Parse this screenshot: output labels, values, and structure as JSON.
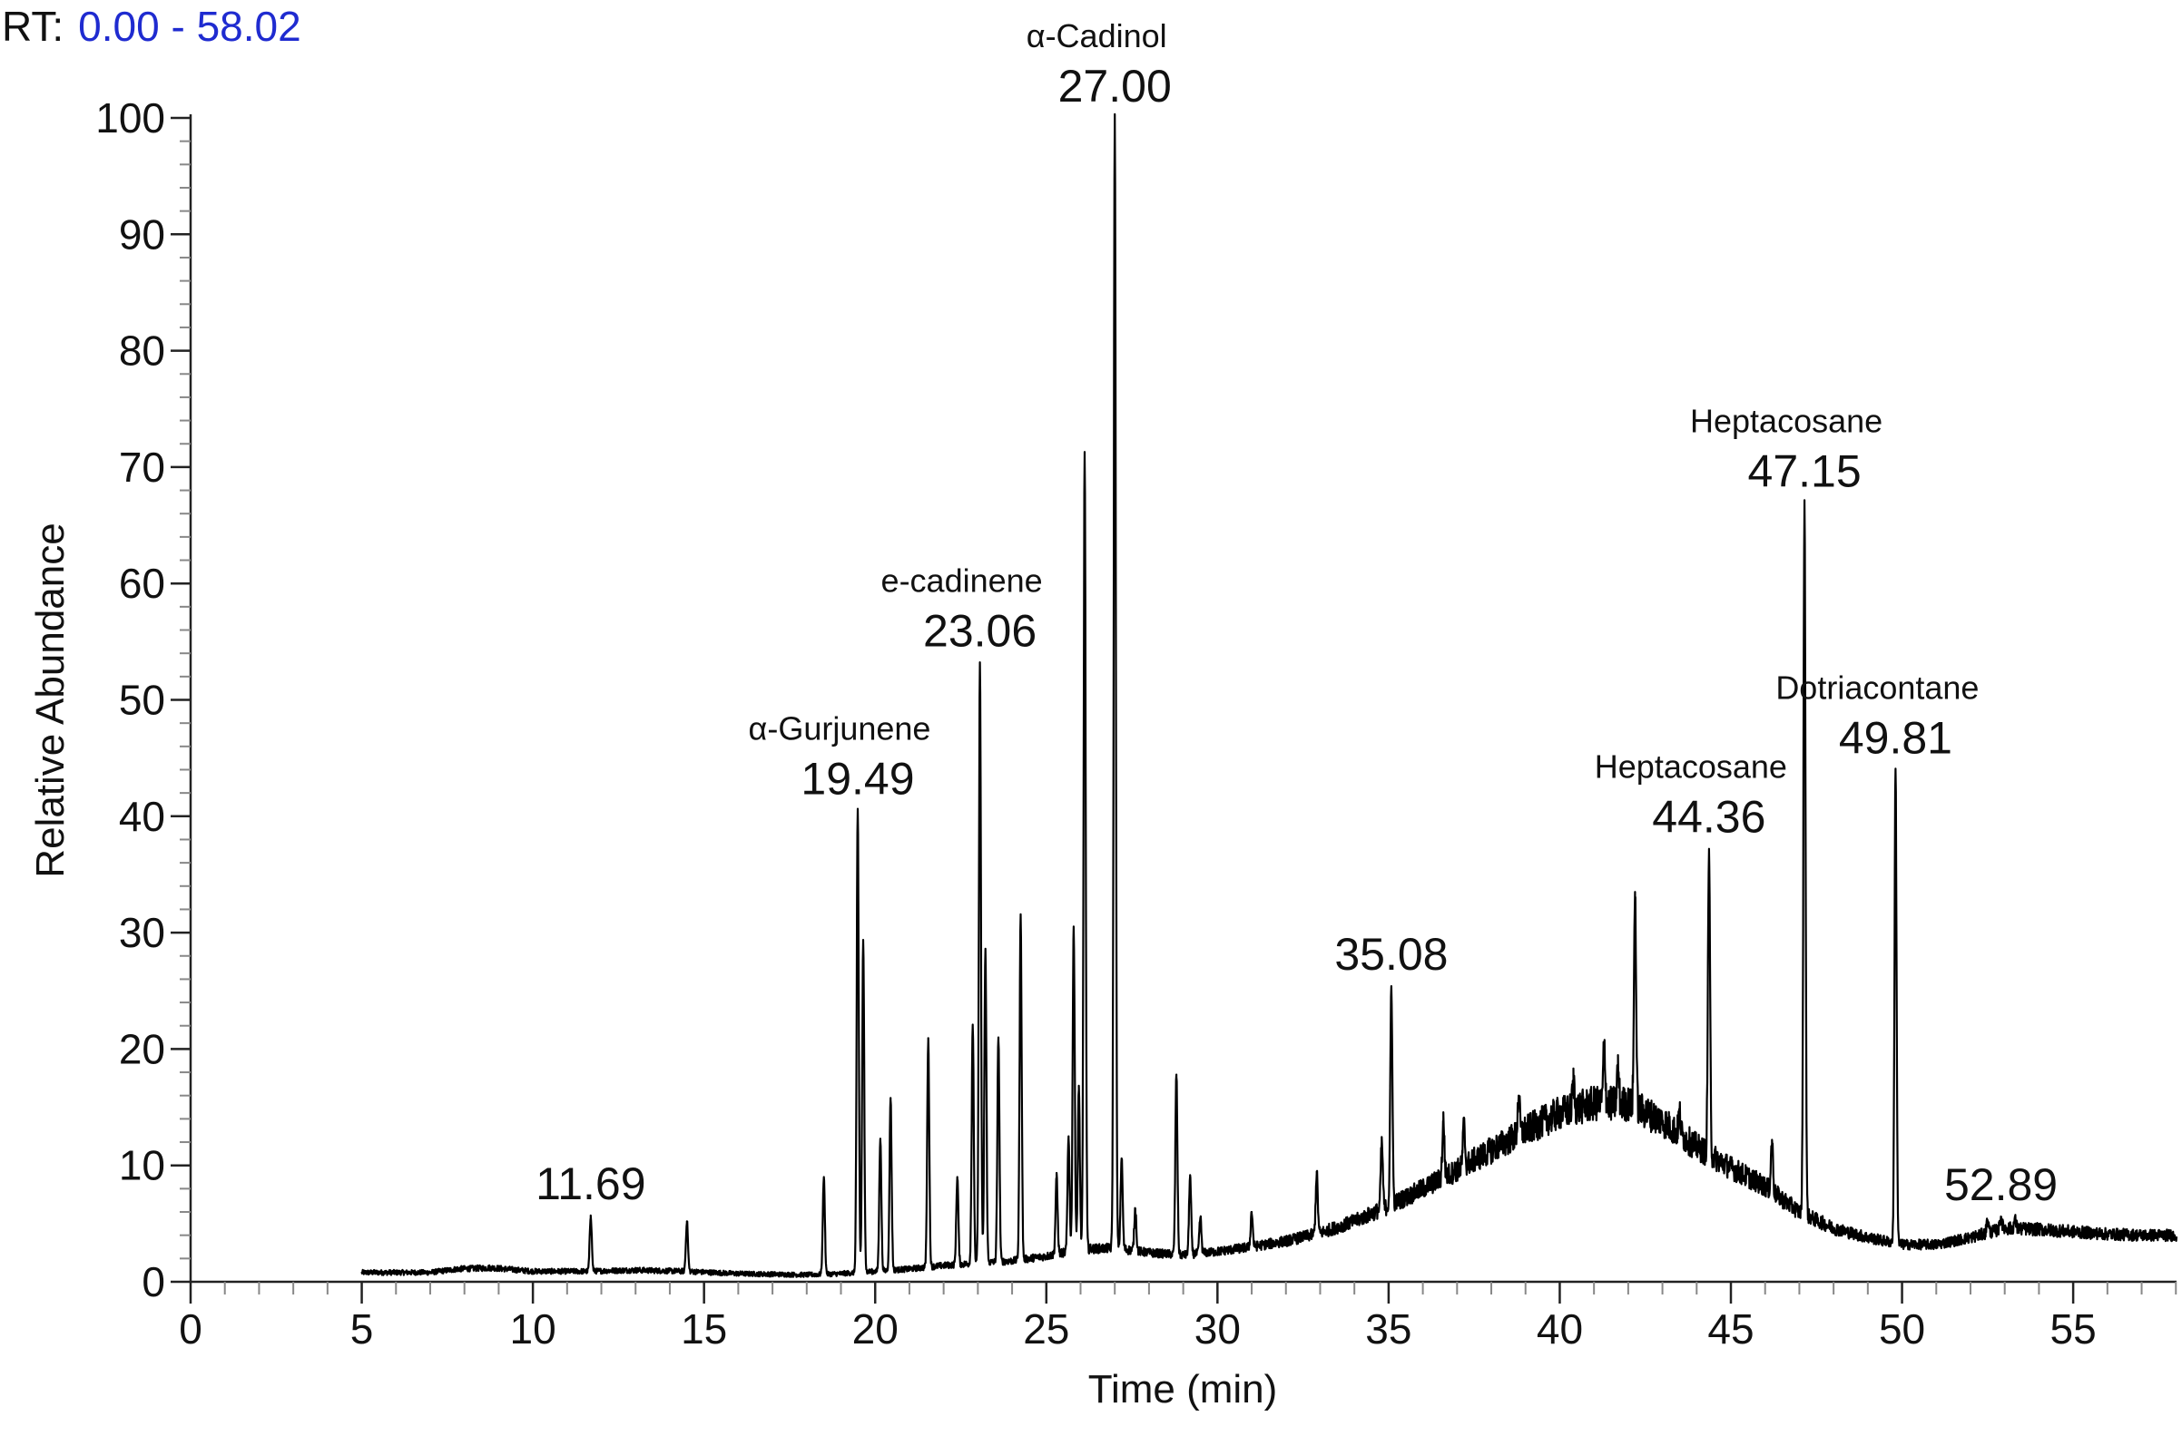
{
  "header": {
    "rt_label": "RT:",
    "rt_range": "0.00 - 58.02"
  },
  "colors": {
    "trace": "#000000",
    "rt_range_text": "#1f2bd0",
    "axis": "#222222",
    "minor_tick": "#888888"
  },
  "chart_data": {
    "type": "line",
    "title": "",
    "xlabel": "Time (min)",
    "ylabel": "Relative Abundance",
    "xlim": [
      0,
      58.02
    ],
    "ylim": [
      0,
      100
    ],
    "xticks": [
      0,
      5,
      10,
      15,
      20,
      25,
      30,
      35,
      40,
      45,
      50,
      55
    ],
    "yticks": [
      0,
      10,
      20,
      30,
      40,
      50,
      60,
      70,
      80,
      90,
      100
    ],
    "grid": false,
    "baseline": [
      [
        5.0,
        0.8
      ],
      [
        6.0,
        0.8
      ],
      [
        7.0,
        0.8
      ],
      [
        7.8,
        1.1
      ],
      [
        8.8,
        1.2
      ],
      [
        10.0,
        0.9
      ],
      [
        11.5,
        0.9
      ],
      [
        13.0,
        1.0
      ],
      [
        14.5,
        0.9
      ],
      [
        16.0,
        0.7
      ],
      [
        18.0,
        0.6
      ],
      [
        19.0,
        0.7
      ],
      [
        20.0,
        0.9
      ],
      [
        21.0,
        1.1
      ],
      [
        22.0,
        1.4
      ],
      [
        23.0,
        1.6
      ],
      [
        24.0,
        1.8
      ],
      [
        25.0,
        2.2
      ],
      [
        26.0,
        2.8
      ],
      [
        27.0,
        2.9
      ],
      [
        28.0,
        2.5
      ],
      [
        29.0,
        2.3
      ],
      [
        30.0,
        2.6
      ],
      [
        31.0,
        3.0
      ],
      [
        32.0,
        3.5
      ],
      [
        33.0,
        4.2
      ],
      [
        34.0,
        5.2
      ],
      [
        35.0,
        6.5
      ],
      [
        36.0,
        8.0
      ],
      [
        37.0,
        9.6
      ],
      [
        38.0,
        11.3
      ],
      [
        39.0,
        13.0
      ],
      [
        40.0,
        14.5
      ],
      [
        41.0,
        15.3
      ],
      [
        42.0,
        15.3
      ],
      [
        43.0,
        13.8
      ],
      [
        44.0,
        11.6
      ],
      [
        45.0,
        9.8
      ],
      [
        46.0,
        8.2
      ],
      [
        47.0,
        6.0
      ],
      [
        48.0,
        4.6
      ],
      [
        49.0,
        3.8
      ],
      [
        50.0,
        3.2
      ],
      [
        51.0,
        3.2
      ],
      [
        52.0,
        3.8
      ],
      [
        53.0,
        4.6
      ],
      [
        54.0,
        4.5
      ],
      [
        55.0,
        4.3
      ],
      [
        56.0,
        4.1
      ],
      [
        57.0,
        4.0
      ],
      [
        58.02,
        4.0
      ]
    ],
    "peaks": [
      {
        "rt": 11.69,
        "abundance": 5.7
      },
      {
        "rt": 14.5,
        "abundance": 5.2
      },
      {
        "rt": 18.5,
        "abundance": 9.0
      },
      {
        "rt": 19.49,
        "abundance": 40.5
      },
      {
        "rt": 19.65,
        "abundance": 29.2
      },
      {
        "rt": 20.15,
        "abundance": 12.3
      },
      {
        "rt": 20.45,
        "abundance": 15.8
      },
      {
        "rt": 21.55,
        "abundance": 20.7
      },
      {
        "rt": 22.4,
        "abundance": 9.0
      },
      {
        "rt": 22.85,
        "abundance": 22.1
      },
      {
        "rt": 23.06,
        "abundance": 53.2
      },
      {
        "rt": 23.22,
        "abundance": 28.6
      },
      {
        "rt": 23.6,
        "abundance": 21.0
      },
      {
        "rt": 24.25,
        "abundance": 31.5
      },
      {
        "rt": 25.3,
        "abundance": 9.0
      },
      {
        "rt": 25.65,
        "abundance": 12.5
      },
      {
        "rt": 25.8,
        "abundance": 30.5
      },
      {
        "rt": 25.95,
        "abundance": 16.5
      },
      {
        "rt": 26.12,
        "abundance": 71.3
      },
      {
        "rt": 27.0,
        "abundance": 100.0
      },
      {
        "rt": 27.2,
        "abundance": 10.6
      },
      {
        "rt": 27.6,
        "abundance": 6.3
      },
      {
        "rt": 28.8,
        "abundance": 17.8
      },
      {
        "rt": 29.2,
        "abundance": 9.1
      },
      {
        "rt": 29.5,
        "abundance": 5.5
      },
      {
        "rt": 31.0,
        "abundance": 6.0
      },
      {
        "rt": 32.9,
        "abundance": 9.3
      },
      {
        "rt": 34.8,
        "abundance": 12.0
      },
      {
        "rt": 35.08,
        "abundance": 25.4
      },
      {
        "rt": 36.6,
        "abundance": 13.9
      },
      {
        "rt": 37.2,
        "abundance": 13.5
      },
      {
        "rt": 38.8,
        "abundance": 16.0
      },
      {
        "rt": 40.4,
        "abundance": 17.2
      },
      {
        "rt": 41.3,
        "abundance": 20.4
      },
      {
        "rt": 41.7,
        "abundance": 18.5
      },
      {
        "rt": 42.2,
        "abundance": 33.5
      },
      {
        "rt": 43.5,
        "abundance": 14.5
      },
      {
        "rt": 44.36,
        "abundance": 37.2
      },
      {
        "rt": 46.2,
        "abundance": 12.2
      },
      {
        "rt": 47.15,
        "abundance": 66.9
      },
      {
        "rt": 49.81,
        "abundance": 44.0
      },
      {
        "rt": 52.5,
        "abundance": 5.3
      },
      {
        "rt": 52.89,
        "abundance": 5.6
      },
      {
        "rt": 53.3,
        "abundance": 5.3
      }
    ],
    "annotations": [
      {
        "rt_text": "11.69",
        "compound": "",
        "rt": 11.69,
        "abundance": 5.7
      },
      {
        "rt_text": "19.49",
        "compound": "α-Gurjunene",
        "rt": 19.49,
        "abundance": 40.5
      },
      {
        "rt_text": "23.06",
        "compound": "e-cadinene",
        "rt": 23.06,
        "abundance": 53.2
      },
      {
        "rt_text": "27.00",
        "compound": "α-Cadinol",
        "rt": 27.0,
        "abundance": 100.0
      },
      {
        "rt_text": "35.08",
        "compound": "",
        "rt": 35.08,
        "abundance": 25.4
      },
      {
        "rt_text": "44.36",
        "compound": "Heptacosane",
        "rt": 44.36,
        "abundance": 37.2
      },
      {
        "rt_text": "47.15",
        "compound": "Heptacosane",
        "rt": 47.15,
        "abundance": 66.9
      },
      {
        "rt_text": "49.81",
        "compound": "Dotriacontane",
        "rt": 49.81,
        "abundance": 44.0
      },
      {
        "rt_text": "52.89",
        "compound": "",
        "rt": 52.89,
        "abundance": 5.6
      }
    ]
  }
}
